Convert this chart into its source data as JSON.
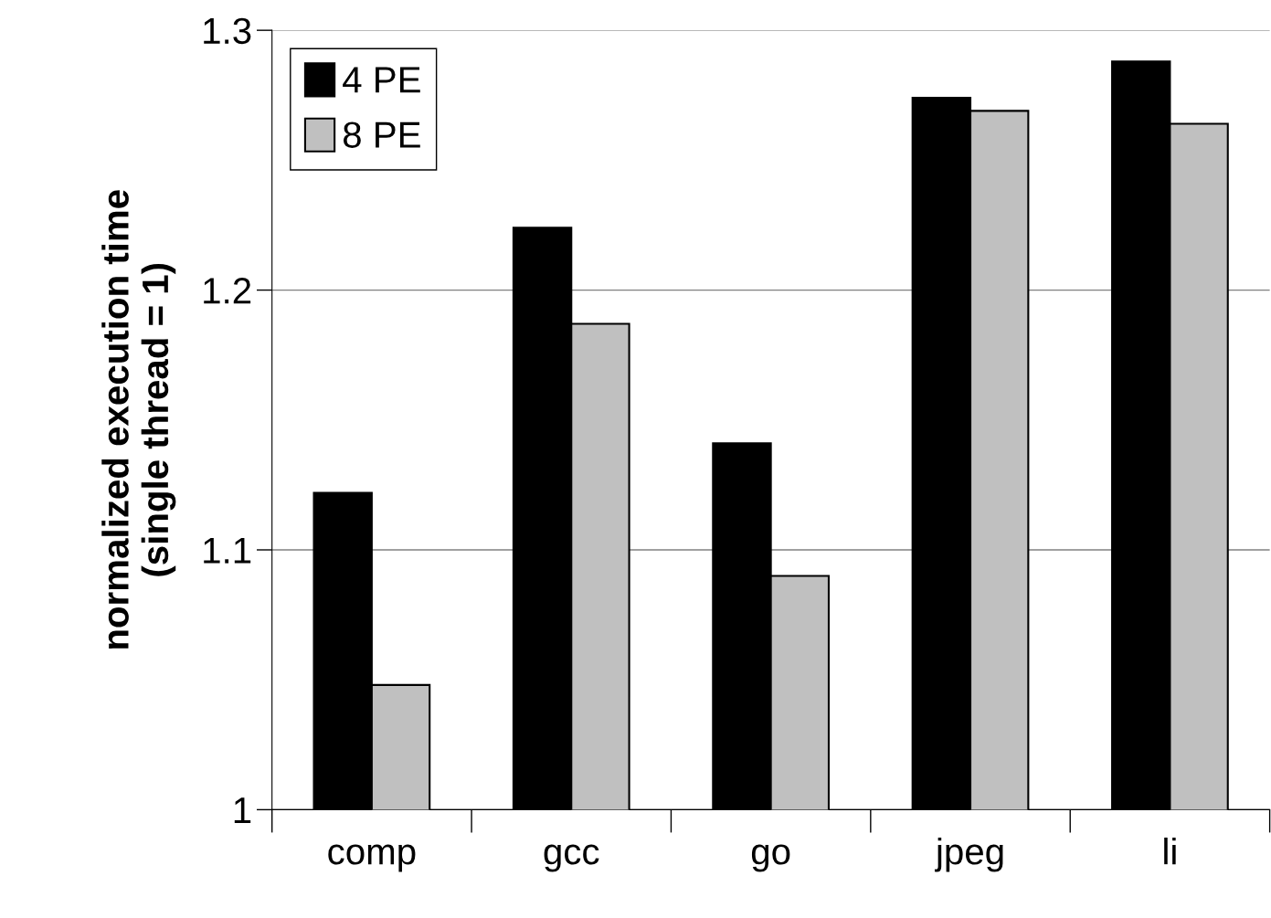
{
  "chart_data": {
    "type": "bar",
    "ylabel": "normalized execution time\n(single thread = 1)",
    "categories": [
      "comp",
      "gcc",
      "go",
      "jpeg",
      "li"
    ],
    "series": [
      {
        "name": "4 PE",
        "color": "#000000",
        "values": [
          1.122,
          1.224,
          1.141,
          1.274,
          1.288
        ]
      },
      {
        "name": "8 PE",
        "color": "#c0c0c0",
        "values": [
          1.048,
          1.187,
          1.09,
          1.269,
          1.264
        ]
      }
    ],
    "ylim": [
      1,
      1.3
    ],
    "yticks": [
      1,
      1.1,
      1.2,
      1.3
    ],
    "grid": "y",
    "legend": "top left"
  }
}
